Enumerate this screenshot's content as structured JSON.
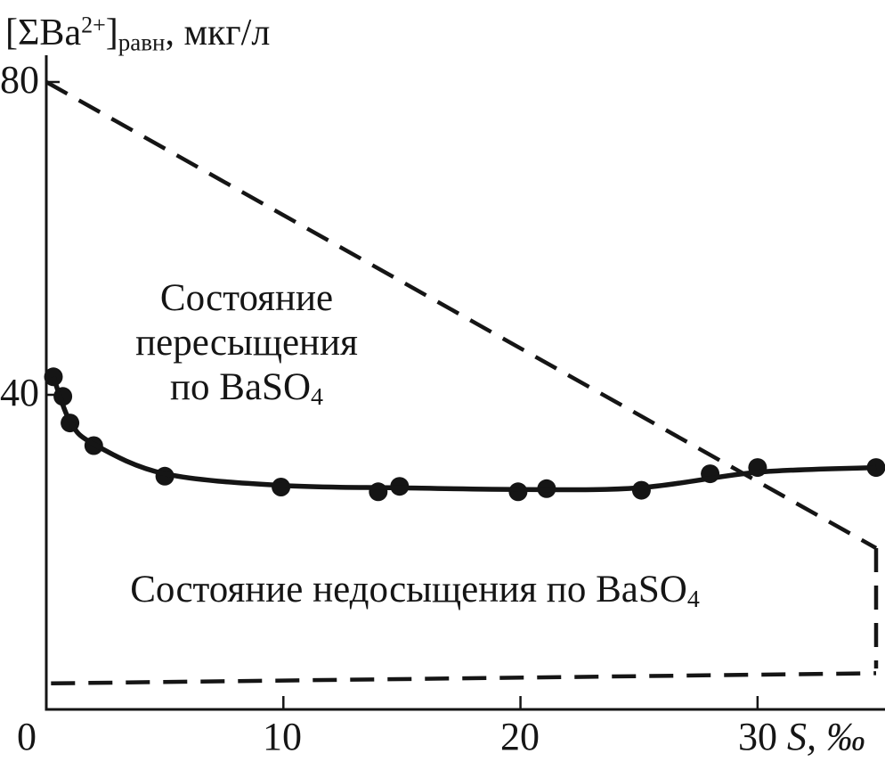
{
  "figure": {
    "background": "#ffffff",
    "ink": "#151515"
  },
  "axis_text": {
    "y_title": {
      "p1": "[ΣBa",
      "sup": "2+",
      "p2": "]",
      "sub": "равн",
      "p3": ", мкг/л"
    },
    "x_title": {
      "var": "S",
      "unit": ", ‰"
    }
  },
  "chart_data": {
    "type": "scatter",
    "title": "",
    "xlabel": "S, ‰",
    "ylabel": "[ΣBa2+]равн, мкг/л",
    "x_range": [
      0,
      35
    ],
    "y_range": [
      0,
      80
    ],
    "x_ticks": [
      0,
      10,
      20,
      30
    ],
    "y_ticks": [
      0,
      40,
      80
    ],
    "grid": false,
    "legend": false,
    "series": [
      {
        "name": "measured-equilibrium-Ba",
        "type": "scatter",
        "points": [
          [
            0.3,
            42.3
          ],
          [
            0.7,
            39.8
          ],
          [
            1.0,
            36.4
          ],
          [
            2.0,
            33.5
          ],
          [
            5.0,
            29.6
          ],
          [
            9.9,
            28.2
          ],
          [
            14.0,
            27.6
          ],
          [
            14.9,
            28.3
          ],
          [
            19.9,
            27.6
          ],
          [
            21.1,
            28.0
          ],
          [
            25.1,
            27.8
          ],
          [
            28.0,
            29.9
          ],
          [
            30.0,
            30.7
          ],
          [
            35.0,
            30.7
          ]
        ]
      },
      {
        "name": "equilibrium-fit-curve",
        "type": "line",
        "style": "solid",
        "smooth": true,
        "points": [
          [
            0.3,
            42.3
          ],
          [
            1.0,
            36.6
          ],
          [
            2.0,
            33.7
          ],
          [
            5.0,
            29.9
          ],
          [
            10,
            28.4
          ],
          [
            15,
            28.1
          ],
          [
            20,
            27.9
          ],
          [
            25,
            28.1
          ],
          [
            30,
            30.1
          ],
          [
            35,
            30.7
          ]
        ]
      },
      {
        "name": "upper-boundary-dashed",
        "type": "line",
        "style": "dashed",
        "smooth": false,
        "points": [
          [
            0,
            80
          ],
          [
            35,
            20.4
          ]
        ]
      },
      {
        "name": "right-boundary-dashed",
        "type": "line",
        "style": "dashed",
        "smooth": false,
        "points": [
          [
            35,
            20.4
          ],
          [
            35,
            5.0
          ]
        ]
      },
      {
        "name": "lower-boundary-dashed",
        "type": "line",
        "style": "dashed",
        "smooth": false,
        "points": [
          [
            0.2,
            3.1
          ],
          [
            35,
            4.4
          ]
        ]
      }
    ],
    "annotations": {
      "supersaturation": {
        "line1": "Состояние",
        "line2": "пересыщения",
        "line3": "по BaSO",
        "line3_sub": "4",
        "x": 8.4,
        "y": 46
      },
      "undersaturation": {
        "text": "Состояние недосыщения по BaSO",
        "sub": "4",
        "x": 15.6,
        "y": 15
      }
    }
  }
}
